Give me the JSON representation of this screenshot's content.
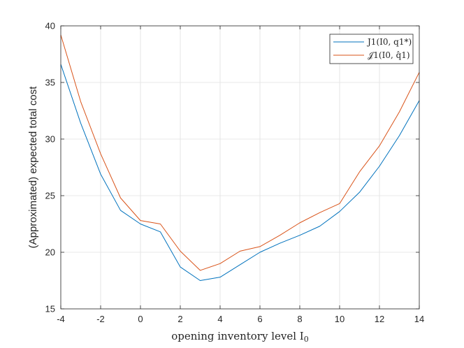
{
  "chart_data": {
    "type": "line",
    "title": "",
    "xlabel": "opening inventory level I",
    "xlabel_sub": "0",
    "ylabel": "(Approximated) expected total cost",
    "xlim": [
      -4,
      14
    ],
    "ylim": [
      15,
      40
    ],
    "xticks": [
      -4,
      -2,
      0,
      2,
      4,
      6,
      8,
      10,
      12,
      14
    ],
    "yticks": [
      15,
      20,
      25,
      30,
      35,
      40
    ],
    "grid": true,
    "legend_position": "top-right",
    "x": [
      -4,
      -3,
      -2,
      -1,
      0,
      1,
      2,
      3,
      4,
      5,
      6,
      7,
      8,
      9,
      10,
      11,
      12,
      13,
      14
    ],
    "series": [
      {
        "name": "J1(I0, q1*)",
        "color": "#0072BD",
        "values": [
          36.6,
          31.4,
          26.9,
          23.7,
          22.5,
          21.8,
          18.7,
          17.5,
          17.8,
          18.9,
          20.0,
          20.8,
          21.5,
          22.3,
          23.6,
          25.3,
          27.6,
          30.3,
          33.4
        ]
      },
      {
        "name": "𝒥1(I0, q̂1)",
        "color": "#D95319",
        "values": [
          39.2,
          33.3,
          28.7,
          24.8,
          22.8,
          22.5,
          20.1,
          18.4,
          19.0,
          20.1,
          20.5,
          21.5,
          22.6,
          23.5,
          24.3,
          27.1,
          29.4,
          32.4,
          35.9
        ]
      }
    ]
  }
}
